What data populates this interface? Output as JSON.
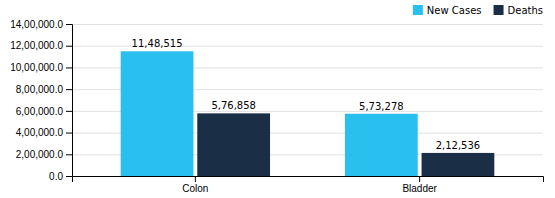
{
  "chart_data": {
    "type": "bar",
    "categories": [
      "Colon",
      "Bladder"
    ],
    "series": [
      {
        "name": "New Cases",
        "color": "#29BFEF",
        "values": [
          1148515,
          573278
        ],
        "value_labels": [
          "11,48,515",
          "5,73,278"
        ]
      },
      {
        "name": "Deaths",
        "color": "#1A2E45",
        "values": [
          576858,
          212536
        ],
        "value_labels": [
          "5,76,858",
          "2,12,536"
        ]
      }
    ],
    "ylim": [
      0,
      1400000
    ],
    "yticks": [
      {
        "value": 0,
        "label": "0.0"
      },
      {
        "value": 200000,
        "label": "2,00,000.0"
      },
      {
        "value": 400000,
        "label": "4,00,000.0"
      },
      {
        "value": 600000,
        "label": "6,00,000.0"
      },
      {
        "value": 800000,
        "label": "8,00,000.0"
      },
      {
        "value": 1000000,
        "label": "10,00,000.0"
      },
      {
        "value": 1200000,
        "label": "12,00,000.0"
      },
      {
        "value": 1400000,
        "label": "14,00,000.0"
      }
    ],
    "grid": true,
    "legend": "upper right",
    "data_labels": true
  }
}
